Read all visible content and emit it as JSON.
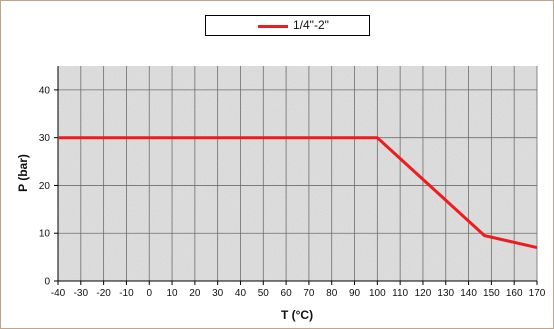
{
  "chart_data": {
    "type": "line",
    "xlabel": "T (°C)",
    "ylabel": "P (bar)",
    "xlim": [
      -40,
      170
    ],
    "ylim": [
      0,
      45
    ],
    "x_ticks": [
      -40,
      -30,
      -20,
      -10,
      0,
      10,
      20,
      30,
      40,
      50,
      60,
      70,
      80,
      90,
      100,
      110,
      120,
      130,
      140,
      150,
      160,
      170
    ],
    "y_ticks": [
      0,
      10,
      20,
      30,
      40
    ],
    "x_tick_labels": [
      "-40",
      "-30",
      "-20",
      "-10",
      "0",
      "10",
      "20",
      "30",
      "40",
      "50",
      "60",
      "70",
      "80",
      "90",
      "100",
      "110",
      "120",
      "130",
      "140",
      "150",
      "160",
      "170"
    ],
    "y_tick_labels": [
      "0",
      "10",
      "20",
      "30",
      "40"
    ],
    "grid": true,
    "legend_position": "top-center",
    "series": [
      {
        "name": "1/4\"-2\"",
        "color": "#ee1c1c",
        "x": [
          -40,
          100,
          147,
          170
        ],
        "y": [
          30,
          30,
          9.5,
          7
        ]
      }
    ]
  }
}
